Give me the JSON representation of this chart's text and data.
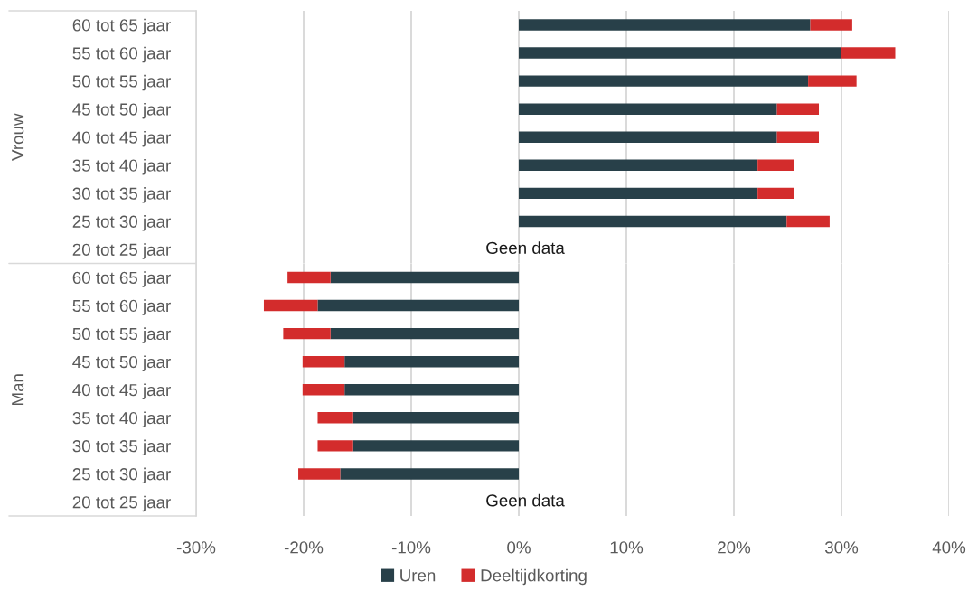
{
  "chart_data": [
    {
      "type": "bar",
      "orientation": "horizontal",
      "stacked": true,
      "ylabel": "Vrouw",
      "categories": [
        "60 tot 65 jaar",
        "55 tot 60 jaar",
        "50 tot 55 jaar",
        "45 tot 50 jaar",
        "40 tot 45 jaar",
        "35 tot 40 jaar",
        "30 tot 35 jaar",
        "25 tot 30 jaar",
        "20 tot 25 jaar"
      ],
      "series": [
        {
          "name": "Uren",
          "color": "#284049",
          "values": [
            27.1,
            30.0,
            26.9,
            24.0,
            24.0,
            22.2,
            22.2,
            24.9,
            null
          ]
        },
        {
          "name": "Deeltijdkorting",
          "color": "#d32c2c",
          "values": [
            3.9,
            5.0,
            4.5,
            3.9,
            3.9,
            3.4,
            3.4,
            4.0,
            null
          ]
        }
      ],
      "xlim": [
        -30,
        40
      ],
      "xticks": [
        -30,
        -20,
        -10,
        0,
        10,
        20,
        30,
        40
      ],
      "tick_labels": "y",
      "grid": "x",
      "legend": "bottom",
      "annotations": [
        "Geen data"
      ]
    },
    {
      "type": "bar",
      "orientation": "horizontal",
      "stacked": true,
      "ylabel": "Man",
      "categories": [
        "60 tot 65 jaar",
        "55 tot 60 jaar",
        "50 tot 55 jaar",
        "45 tot 50 jaar",
        "40 tot 45 jaar",
        "35 tot 40 jaar",
        "30 tot 35 jaar",
        "25 tot 30 jaar",
        "20 tot 25 jaar"
      ],
      "series": [
        {
          "color": "#284049",
          "values": [
            -17.5,
            -18.7,
            -17.5,
            -16.2,
            -16.2,
            -15.4,
            -15.4,
            -16.6,
            null
          ]
        },
        {
          "color": "#d32c2c",
          "values": [
            -4.0,
            -5.0,
            -4.4,
            -3.9,
            -3.9,
            -3.3,
            -3.3,
            -3.9,
            null
          ]
        }
      ],
      "xlim": [
        -30,
        40
      ],
      "xticks": [
        {
          "value": -30,
          "label": "-30%"
        },
        {
          "value": -20,
          "label": "-20%"
        },
        {
          "value": -10,
          "label": "-10%"
        },
        {
          "value": 0,
          "label": "0%"
        },
        {
          "value": 10,
          "label": "10%"
        },
        {
          "value": 20,
          "label": "20%"
        },
        {
          "value": 30,
          "label": "30%"
        },
        {
          "value": 40,
          "label": "40%"
        }
      ],
      "grid": "x",
      "annotations": [
        "Geen data"
      ]
    }
  ]
}
